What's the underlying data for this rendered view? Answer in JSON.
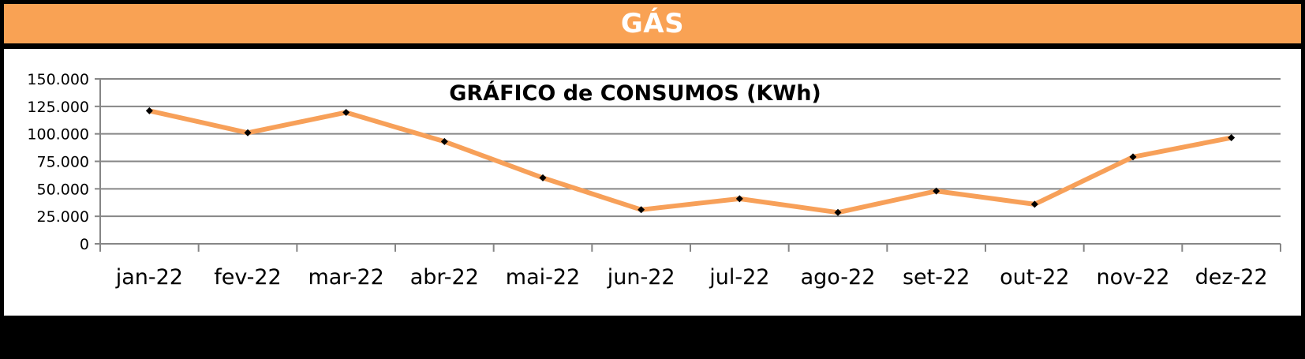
{
  "header": {
    "title": "GÁS"
  },
  "colors": {
    "header_bg": "#F9A254",
    "header_text": "#FFFFFF",
    "line": "#F7A059",
    "marker": "#000000",
    "grid": "#868686",
    "background": "#000000",
    "panel": "#FFFFFF"
  },
  "chart_data": {
    "type": "line",
    "title": "GRÁFICO de CONSUMOS (KWh)",
    "xlabel": "",
    "ylabel": "",
    "ylim": [
      0,
      150000
    ],
    "y_ticks": [
      0,
      25000,
      50000,
      75000,
      100000,
      125000,
      150000
    ],
    "y_tick_labels": [
      "0",
      "25.000",
      "50.000",
      "75.000",
      "100.000",
      "125.000",
      "150.000"
    ],
    "grid": true,
    "legend": "none",
    "categories": [
      "jan-22",
      "fev-22",
      "mar-22",
      "abr-22",
      "mai-22",
      "jun-22",
      "jul-22",
      "ago-22",
      "set-22",
      "out-22",
      "nov-22",
      "dez-22"
    ],
    "series": [
      {
        "values": [
          121000,
          101000,
          119500,
          93000,
          60000,
          31000,
          41000,
          28500,
          48000,
          36000,
          79000,
          96500
        ]
      }
    ]
  }
}
